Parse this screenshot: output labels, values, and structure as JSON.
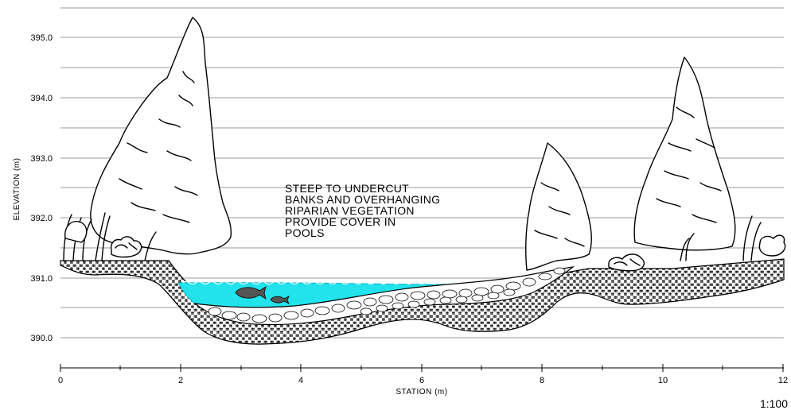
{
  "chart_data": {
    "type": "diagram",
    "xlabel": "STATION (m)",
    "ylabel": "ELEVATION (m)",
    "x_ticks": [
      "0",
      "2",
      "4",
      "6",
      "8",
      "10",
      "12"
    ],
    "y_ticks": [
      "395.0",
      "394.0",
      "393.0",
      "392.0",
      "391.0",
      "390.0"
    ],
    "xlim": [
      0,
      12
    ],
    "ylim": [
      389.5,
      395.5
    ],
    "grid": true
  },
  "annotation": {
    "lines": [
      "STEEP TO UNDERCUT",
      "BANKS AND OVERHANGING",
      "RIPARIAN VEGETATION",
      "PROVIDE COVER IN",
      "POOLS"
    ]
  },
  "scale_label": "1:100",
  "colors": {
    "water": "#22e3ec",
    "gridline": "#9a9a9a",
    "ink": "#000000"
  }
}
